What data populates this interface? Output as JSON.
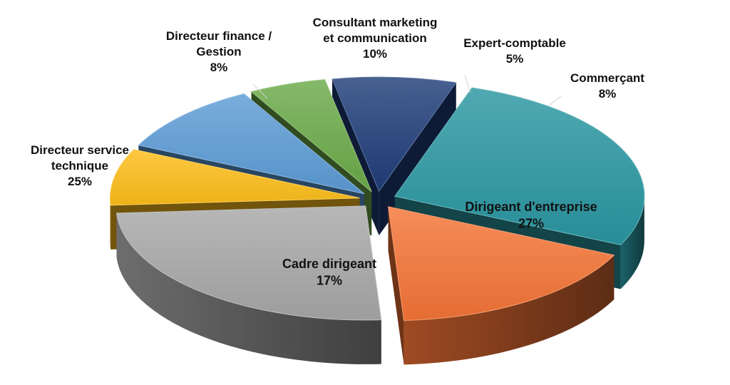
{
  "chart_data": {
    "type": "pie",
    "style": "3d-exploded",
    "legend": "none",
    "slices": [
      {
        "label": "Dirigeant d'entreprise",
        "value": 27,
        "value_label": "27%",
        "color": "#2a96a1",
        "label_position": "inside"
      },
      {
        "label": "Cadre dirigeant",
        "value": 17,
        "value_label": "17%",
        "color": "#f47436",
        "label_position": "inside"
      },
      {
        "label": "Directeur service technique",
        "value": 25,
        "value_label": "25%",
        "color": "#a7a7a7",
        "label_position": "outside"
      },
      {
        "label": "Directeur finance / Gestion",
        "value": 8,
        "value_label": "8%",
        "color": "#fcbd1a",
        "label_position": "outside"
      },
      {
        "label": "Consultant marketing et communication",
        "value": 10,
        "value_label": "10%",
        "color": "#5b9bd5",
        "label_position": "outside"
      },
      {
        "label": "Expert-comptable",
        "value": 5,
        "value_label": "5%",
        "color": "#6aaa48",
        "label_position": "outside"
      },
      {
        "label": "Commerçant",
        "value": 8,
        "value_label": "8%",
        "color": "#1f3d78",
        "label_position": "outside"
      }
    ]
  }
}
